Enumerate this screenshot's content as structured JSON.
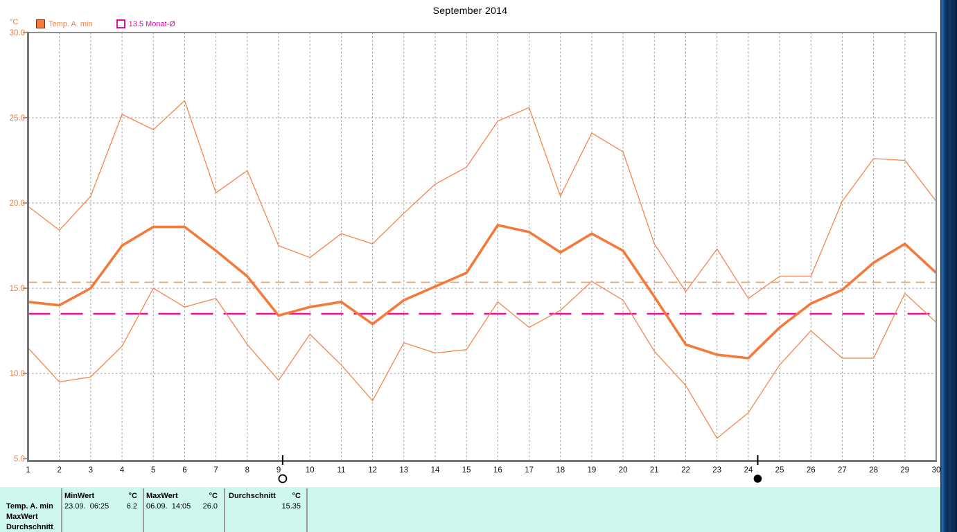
{
  "title": "September 2014",
  "legend": {
    "unit": "°C",
    "series1_label": "Temp. A. min",
    "series2_label": "13.5 Monat-Ø"
  },
  "chart_data": {
    "type": "line",
    "title": "September 2014",
    "ylabel": "°C",
    "ylim": [
      5,
      30
    ],
    "grid": true,
    "yticks": [
      30,
      25,
      20,
      15,
      10,
      5
    ],
    "ytick_labels": [
      "30.0",
      "25.0",
      "20.0",
      "15.0",
      "10.0",
      "5.0"
    ],
    "x": [
      1,
      2,
      3,
      4,
      5,
      6,
      7,
      8,
      9,
      10,
      11,
      12,
      13,
      14,
      15,
      16,
      17,
      18,
      19,
      20,
      21,
      22,
      23,
      24,
      25,
      26,
      27,
      28,
      29,
      30
    ],
    "series": [
      {
        "name": "daily-max",
        "color": "#f5854a",
        "width": 1.3,
        "values": [
          19.8,
          18.4,
          20.4,
          25.2,
          24.3,
          26.0,
          20.6,
          21.9,
          17.5,
          16.8,
          18.2,
          17.6,
          19.4,
          21.1,
          22.1,
          24.8,
          25.6,
          20.4,
          24.1,
          23.0,
          17.6,
          14.8,
          17.3,
          14.4,
          15.7,
          15.7,
          20.1,
          22.6,
          22.5,
          20.1
        ]
      },
      {
        "name": "daily-mean",
        "color": "#f4793a",
        "width": 3.6,
        "values": [
          14.2,
          14.0,
          15.0,
          17.5,
          18.6,
          18.6,
          17.2,
          15.7,
          13.4,
          13.9,
          14.2,
          12.9,
          14.3,
          15.1,
          15.9,
          18.7,
          18.3,
          17.1,
          18.2,
          17.2,
          14.5,
          11.7,
          11.1,
          10.9,
          12.7,
          14.1,
          14.9,
          16.5,
          17.6,
          15.9
        ]
      },
      {
        "name": "daily-min",
        "color": "#f5854a",
        "width": 1.3,
        "values": [
          11.5,
          9.5,
          9.8,
          11.6,
          15.0,
          13.9,
          14.4,
          11.7,
          9.6,
          12.3,
          10.5,
          8.4,
          11.8,
          11.2,
          11.4,
          14.2,
          12.7,
          13.7,
          15.4,
          14.3,
          11.3,
          9.3,
          6.2,
          7.7,
          10.5,
          12.5,
          10.9,
          10.9,
          14.7,
          13.0
        ]
      }
    ],
    "reference_lines": [
      {
        "name": "month-average",
        "value": 15.35,
        "color": "#f59a58",
        "width": 1.6,
        "dash": "13,8"
      },
      {
        "name": "13.5-monat-avg",
        "value": 13.5,
        "color": "#ea0b9b",
        "width": 2.4,
        "dash": "32,15"
      }
    ],
    "moon_markers": [
      {
        "x_day": 9.13,
        "style": "open"
      },
      {
        "x_day": 24.3,
        "style": "filled"
      }
    ],
    "legend_position": "top-left"
  },
  "table": {
    "row_labels": [
      "Temp. A. min",
      "MaxWert",
      "Durchschnitt"
    ],
    "columns": [
      {
        "header": "MinWert",
        "unit": "°C",
        "datetime": "23.09.  06:25",
        "value": "6.2"
      },
      {
        "header": "MaxWert",
        "unit": "°C",
        "datetime": "06.09.  14:05",
        "value": "26.0"
      },
      {
        "header": "Durchschnitt",
        "unit": "°C",
        "datetime": "",
        "value": "15.35"
      }
    ]
  }
}
